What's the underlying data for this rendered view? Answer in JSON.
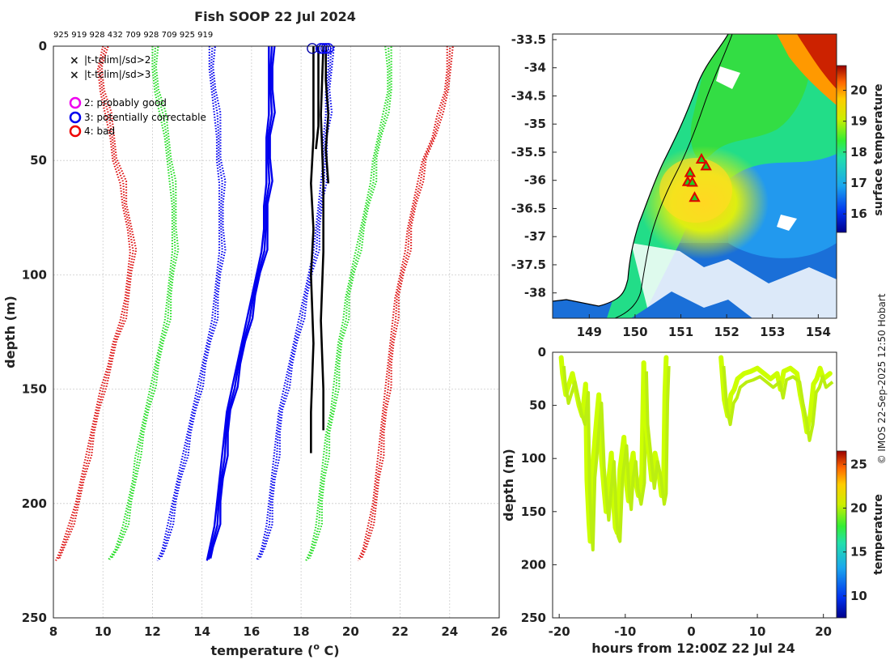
{
  "title": "Fish SOOP 22 Jul 2024",
  "credit": "© IMOS 22-Sep-2025 12:50 Hobart",
  "colors": {
    "clim_green": "#22dd22",
    "clim_red": "#dd1111",
    "clim_blue": "#0000ee",
    "profile": "#000000",
    "section_line": "#ccff00"
  },
  "chart_data": [
    {
      "type": "line",
      "name": "profile-plot",
      "title": "Fish SOOP 22 Jul 2024",
      "xlabel": "temperature (o C)",
      "xlabel_main": "temperature (",
      "xlabel_sup": "o",
      "xlabel_end": " C)",
      "ylabel": "depth (m)",
      "xlim": [
        8,
        26
      ],
      "ylim": [
        250,
        0
      ],
      "xticks": [
        8,
        10,
        12,
        14,
        16,
        18,
        20,
        22,
        24,
        26
      ],
      "yticks": [
        0,
        50,
        100,
        150,
        200,
        250
      ],
      "grid": true,
      "depth_labels": "925 919 928 432 709 928 709 925 919",
      "legend": [
        {
          "marker": "x",
          "color": "#22dd22",
          "label": "|t-tclim|/sd>2"
        },
        {
          "marker": "x",
          "color": "#dd1111",
          "label": "|t-tclim|/sd>3"
        },
        {
          "marker": "o",
          "color": "#ee00ee",
          "label": "2: probably good"
        },
        {
          "marker": "o",
          "color": "#0000ee",
          "label": "3: potentially correctable"
        },
        {
          "marker": "o",
          "color": "#ee0000",
          "label": "4: bad"
        }
      ],
      "clim_depths": [
        0,
        10,
        20,
        30,
        40,
        50,
        60,
        70,
        80,
        90,
        100,
        110,
        120,
        130,
        140,
        150,
        160,
        170,
        180,
        190,
        200,
        210,
        220,
        225
      ],
      "series": [
        {
          "name": "mean-3sd",
          "color": "#dd1111",
          "style": "dotted",
          "offset": -6,
          "values": [
            10.0,
            9.8,
            9.9,
            10.1,
            10.3,
            10.4,
            10.7,
            10.8,
            11.0,
            11.1,
            11.0,
            10.9,
            10.7,
            10.4,
            10.2,
            9.9,
            9.7,
            9.5,
            9.3,
            9.1,
            8.9,
            8.6,
            8.3,
            8.1
          ]
        },
        {
          "name": "mean-2sd",
          "color": "#22dd22",
          "style": "dotted",
          "offset": -4,
          "values": [
            12.0,
            12.0,
            12.1,
            12.3,
            12.5,
            12.6,
            12.7,
            12.8,
            12.8,
            12.8,
            12.7,
            12.6,
            12.5,
            12.3,
            12.1,
            11.9,
            11.7,
            11.5,
            11.3,
            11.2,
            11.0,
            10.8,
            10.5,
            10.2
          ]
        },
        {
          "name": "mean-1sd",
          "color": "#0000ee",
          "style": "dotted",
          "offset": -2,
          "values": [
            14.3,
            14.3,
            14.4,
            14.5,
            14.6,
            14.6,
            14.7,
            14.7,
            14.7,
            14.7,
            14.6,
            14.5,
            14.4,
            14.2,
            14.0,
            13.8,
            13.6,
            13.4,
            13.2,
            13.0,
            12.8,
            12.6,
            12.4,
            12.2
          ]
        },
        {
          "name": "mean",
          "color": "#0000ee",
          "style": "solid",
          "offset": 0,
          "values": [
            16.7,
            16.7,
            16.7,
            16.7,
            16.6,
            16.6,
            16.6,
            16.5,
            16.5,
            16.4,
            16.2,
            16.0,
            15.8,
            15.6,
            15.4,
            15.2,
            15.0,
            14.9,
            14.8,
            14.7,
            14.6,
            14.5,
            14.3,
            14.2
          ]
        },
        {
          "name": "mean+1sd",
          "color": "#0000ee",
          "style": "dotted",
          "offset": 2,
          "values": [
            19.1,
            19.1,
            19.0,
            19.0,
            18.9,
            18.9,
            18.8,
            18.7,
            18.6,
            18.5,
            18.3,
            18.1,
            17.9,
            17.7,
            17.5,
            17.3,
            17.1,
            17.0,
            16.9,
            16.8,
            16.7,
            16.6,
            16.4,
            16.2
          ]
        },
        {
          "name": "mean+2sd",
          "color": "#22dd22",
          "style": "dotted",
          "offset": 4,
          "values": [
            21.4,
            21.5,
            21.5,
            21.3,
            21.1,
            20.9,
            20.8,
            20.6,
            20.4,
            20.2,
            20.0,
            19.8,
            19.7,
            19.5,
            19.4,
            19.3,
            19.2,
            19.0,
            18.9,
            18.8,
            18.7,
            18.6,
            18.4,
            18.2
          ]
        },
        {
          "name": "mean+3sd",
          "color": "#dd1111",
          "style": "dotted",
          "offset": 6,
          "values": [
            23.9,
            23.9,
            23.8,
            23.5,
            23.3,
            22.9,
            22.7,
            22.5,
            22.3,
            22.2,
            22.0,
            21.8,
            21.7,
            21.6,
            21.5,
            21.4,
            21.3,
            21.2,
            21.1,
            21.0,
            20.9,
            20.7,
            20.5,
            20.3
          ]
        }
      ],
      "profiles": [
        {
          "temps": [
            18.5,
            18.5,
            18.5,
            18.4,
            18.5,
            18.4,
            18.5,
            18.4,
            18.4
          ],
          "depths": [
            0,
            20,
            40,
            60,
            80,
            100,
            130,
            160,
            178
          ]
        },
        {
          "temps": [
            18.9,
            18.8,
            18.9,
            18.9,
            18.8,
            18.9,
            18.9
          ],
          "depths": [
            0,
            30,
            60,
            90,
            120,
            150,
            168
          ]
        },
        {
          "temps": [
            19.0,
            19.0,
            19.1,
            19.0,
            19.1
          ],
          "depths": [
            0,
            15,
            30,
            45,
            60
          ]
        },
        {
          "temps": [
            18.7,
            18.7,
            18.7,
            18.6
          ],
          "depths": [
            0,
            20,
            35,
            45
          ]
        }
      ],
      "flag_markers": [
        {
          "temp": 18.45,
          "depth": 1,
          "color": "#0000aa"
        },
        {
          "temp": 18.8,
          "depth": 1,
          "color": "#0000ee"
        },
        {
          "temp": 18.9,
          "depth": 1,
          "color": "#0000ee"
        },
        {
          "temp": 19.0,
          "depth": 1,
          "color": "#0000ee"
        },
        {
          "temp": 19.1,
          "depth": 1,
          "color": "#0000ee"
        }
      ]
    },
    {
      "type": "heatmap",
      "name": "sst-map",
      "colorbar_label": "surface temperature",
      "xlim": [
        148.2,
        154.4
      ],
      "ylim": [
        -38.45,
        -33.4
      ],
      "xticks": [
        149,
        150,
        151,
        152,
        153,
        154
      ],
      "yticks": [
        -33.5,
        -34,
        -34.5,
        -35,
        -35.5,
        -36,
        -36.5,
        -37,
        -37.5,
        -38
      ],
      "ytick_labels": [
        "-33.5",
        "-34",
        "-34.5",
        "-35",
        "-35.5",
        "-36",
        "-36.5",
        "-37",
        "-37.5",
        "-38"
      ],
      "colorbar_ticks": [
        16,
        17,
        18,
        19,
        20
      ],
      "colorbar_range": [
        15.4,
        20.8
      ],
      "stations": [
        {
          "lon": 151.45,
          "lat": -35.63
        },
        {
          "lon": 151.55,
          "lat": -35.75
        },
        {
          "lon": 151.2,
          "lat": -35.87
        },
        {
          "lon": 151.15,
          "lat": -36.03
        },
        {
          "lon": 151.25,
          "lat": -36.04
        },
        {
          "lon": 151.3,
          "lat": -36.31
        }
      ]
    },
    {
      "type": "scatter",
      "name": "time-depth-section",
      "xlabel": "hours from 12:00Z 22 Jul 24",
      "ylabel": "depth (m)",
      "colorbar_label": "temperature",
      "xlim": [
        -21,
        22
      ],
      "ylim": [
        250,
        0
      ],
      "xticks": [
        -20,
        -10,
        0,
        10,
        20
      ],
      "yticks": [
        0,
        50,
        100,
        150,
        200,
        250
      ],
      "colorbar_ticks": [
        10,
        15,
        20,
        25
      ],
      "colorbar_range": [
        7.5,
        26.5
      ],
      "segments": [
        {
          "x": [
            -19.7,
            -19.5,
            -19.0,
            -18.5,
            -18.0,
            -17.5,
            -17.0,
            -16.5,
            -16.0,
            -15.8,
            -15.5,
            -15.3,
            -15.0,
            -14.7,
            -14.3,
            -14.0,
            -13.6,
            -13.2,
            -12.9,
            -12.5,
            -12.1,
            -11.8,
            -11.5,
            -11.2,
            -10.8,
            -10.5,
            -10.2,
            -9.8,
            -9.5,
            -9.2,
            -8.8,
            -8.5,
            -8.0,
            -7.5,
            -7.2
          ],
          "y": [
            5,
            20,
            40,
            30,
            20,
            35,
            50,
            60,
            30,
            120,
            160,
            178,
            110,
            90,
            60,
            40,
            100,
            130,
            150,
            120,
            95,
            140,
            165,
            170,
            110,
            95,
            80,
            125,
            140,
            110,
            95,
            120,
            135,
            115,
            10
          ]
        },
        {
          "x": [
            -7.2,
            -7.0,
            -6.5,
            -6.0,
            -5.5,
            -5.0,
            -4.5,
            -4.2,
            -4.0,
            -3.8
          ],
          "y": [
            10,
            60,
            90,
            120,
            95,
            110,
            135,
            125,
            40,
            5
          ]
        },
        {
          "x": [
            4.5,
            5.0,
            5.5,
            6.0,
            6.5,
            7.0,
            8.0,
            9.0,
            10.0,
            11.0,
            12.0,
            13.0,
            13.5,
            14.0,
            15.0,
            16.0,
            16.5,
            17.0,
            17.5,
            18.0,
            18.5,
            19.0,
            19.5,
            20.0,
            21.0
          ],
          "y": [
            5,
            45,
            60,
            40,
            35,
            25,
            20,
            18,
            15,
            20,
            25,
            20,
            35,
            18,
            15,
            20,
            40,
            55,
            75,
            60,
            30,
            25,
            15,
            25,
            20
          ]
        }
      ]
    }
  ]
}
